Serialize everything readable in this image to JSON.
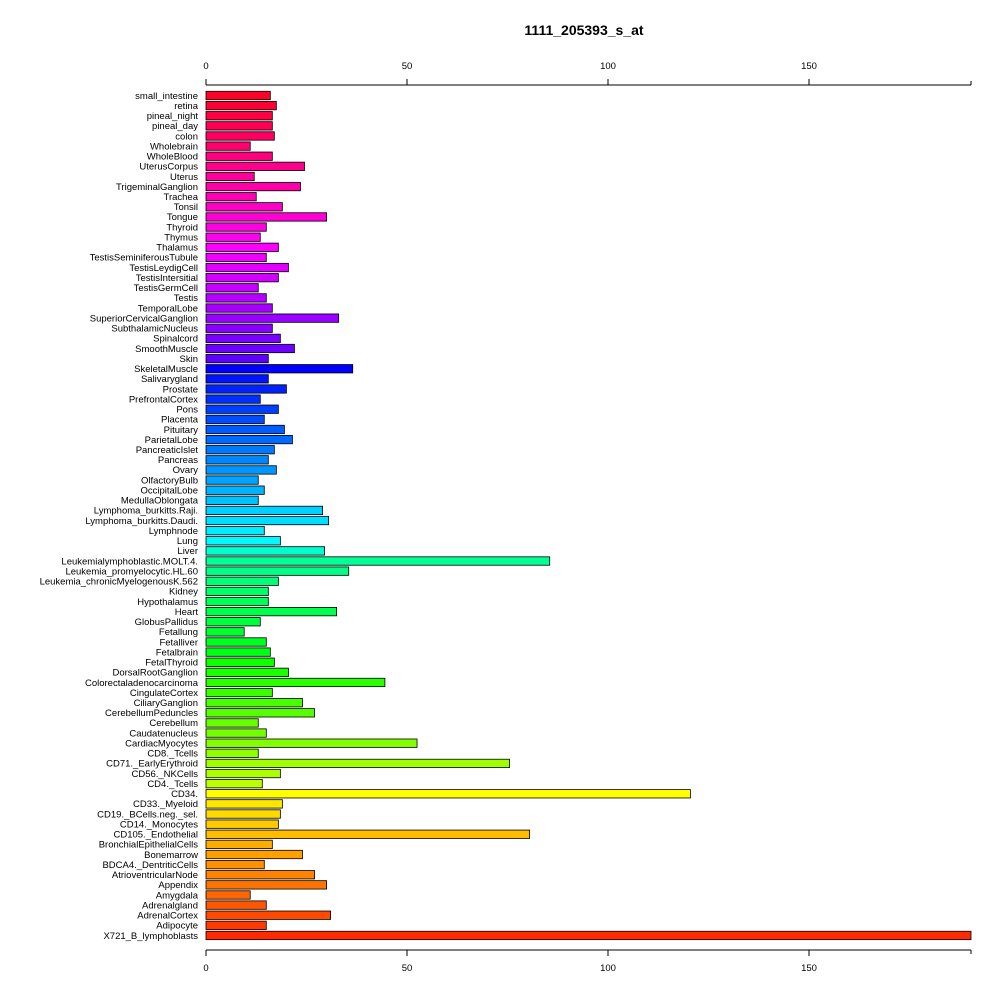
{
  "chart_data": {
    "type": "bar",
    "orientation": "horizontal",
    "title": "1111_205393_s_at",
    "xlabel": "",
    "ylabel": "",
    "xlim": [
      0,
      190
    ],
    "xticks": [
      0,
      50,
      100,
      150
    ],
    "axis_positions": [
      "top",
      "bottom"
    ],
    "grid": false,
    "legend": "none",
    "categories": [
      "small_intestine",
      "retina",
      "pineal_night",
      "pineal_day",
      "colon",
      "Wholebrain",
      "WholeBlood",
      "UterusCorpus",
      "Uterus",
      "TrigeminalGanglion",
      "Trachea",
      "Tonsil",
      "Tongue",
      "Thyroid",
      "Thymus",
      "Thalamus",
      "TestisSeminiferousTubule",
      "TestisLeydigCell",
      "TestisIntersitial",
      "TestisGermCell",
      "Testis",
      "TemporalLobe",
      "SuperiorCervicalGanglion",
      "SubthalamicNucleus",
      "Spinalcord",
      "SmoothMuscle",
      "Skin",
      "SkeletalMuscle",
      "Salivarygland",
      "Prostate",
      "PrefrontalCortex",
      "Pons",
      "Placenta",
      "Pituitary",
      "ParietalLobe",
      "PancreaticIslet",
      "Pancreas",
      "Ovary",
      "OlfactoryBulb",
      "OccipitalLobe",
      "MedullaOblongata",
      "Lymphoma_burkitts.Raji.",
      "Lymphoma_burkitts.Daudi.",
      "Lymphnode",
      "Lung",
      "Liver",
      "Leukemialymphoblastic.MOLT.4.",
      "Leukemia_promyelocytic.HL.60",
      "Leukemia_chronicMyelogenousK.562",
      "Kidney",
      "Hypothalamus",
      "Heart",
      "GlobusPallidus",
      "Fetallung",
      "Fetalliver",
      "Fetalbrain",
      "FetalThyroid",
      "DorsalRootGanglion",
      "Colorectaladenocarcinoma",
      "CingulateCortex",
      "CiliaryGanglion",
      "CerebellumPeduncles",
      "Cerebellum",
      "Caudatenucleus",
      "CardiacMyocytes",
      "CD8._Tcells",
      "CD71._EarlyErythroid",
      "CD56._NKCells",
      "CD4._Tcells",
      "CD34.",
      "CD33._Myeloid",
      "CD19._BCells.neg._sel.",
      "CD14._Monocytes",
      "CD105._Endothelial",
      "BronchialEpithelialCells",
      "Bonemarrow",
      "BDCA4._DentriticCells",
      "AtrioventricularNode",
      "Appendix",
      "Amygdala",
      "Adrenalgland",
      "AdrenalCortex",
      "Adipocyte",
      "X721_B_lymphoblasts"
    ],
    "values": [
      16,
      17.5,
      16.5,
      16.5,
      17,
      11,
      16.5,
      24.5,
      12,
      23.5,
      12.5,
      19,
      30,
      15,
      13.5,
      18,
      15,
      20.5,
      18,
      13,
      15,
      16.5,
      33,
      16.5,
      18.5,
      22,
      15.5,
      36.5,
      15.5,
      20,
      13.5,
      18,
      14.5,
      19.5,
      21.5,
      17,
      15.5,
      17.5,
      13,
      14.5,
      13,
      29,
      30.5,
      14.5,
      18.5,
      29.5,
      85.5,
      35.5,
      18,
      15.5,
      15.5,
      32.5,
      13.5,
      9.5,
      15,
      16,
      17,
      20.5,
      44.5,
      16.5,
      24,
      27,
      13,
      15,
      52.5,
      13,
      75.5,
      18.5,
      14,
      120.5,
      19,
      18.5,
      18,
      80.5,
      16.5,
      24,
      14.5,
      27,
      30,
      11,
      15,
      31,
      15,
      191
    ],
    "colors": [
      "#ff0026",
      "#ff0035",
      "#ff0043",
      "#ff0052",
      "#ff0060",
      "#ff006f",
      "#ff007d",
      "#ff008c",
      "#ff009a",
      "#ff00a9",
      "#ff00b7",
      "#ff00c6",
      "#ff00d4",
      "#ff00e3",
      "#ff00f1",
      "#fe00ff",
      "#ef00ff",
      "#e100ff",
      "#d200ff",
      "#c400ff",
      "#b500ff",
      "#a700ff",
      "#9800ff",
      "#8a00ff",
      "#7b00ff",
      "#6d00ff",
      "#5e00ff",
      "#0000ff",
      "#0013ff",
      "#0022ff",
      "#0030ff",
      "#003fff",
      "#004dff",
      "#005cff",
      "#006aff",
      "#0079ff",
      "#0087ff",
      "#0096ff",
      "#00a4ff",
      "#00b3ff",
      "#00c1ff",
      "#00d0ff",
      "#00deff",
      "#00edff",
      "#00fbff",
      "#00ffcc",
      "#00ff94",
      "#00ff86",
      "#00ff77",
      "#00ff69",
      "#00ff5a",
      "#00ff4c",
      "#00ff3d",
      "#00ff2f",
      "#00ff20",
      "#00ff12",
      "#0eff00",
      "#1cff00",
      "#2bff00",
      "#39ff00",
      "#48ff00",
      "#56ff00",
      "#65ff00",
      "#73ff00",
      "#82ff00",
      "#90ff00",
      "#9fff00",
      "#adff00",
      "#bcff00",
      "#ffff00",
      "#ffe700",
      "#ffd900",
      "#ffca00",
      "#ffbc00",
      "#ffad00",
      "#ff9f00",
      "#ff9000",
      "#ff8200",
      "#ff7300",
      "#ff6500",
      "#ff5600",
      "#ff4800",
      "#ff3900",
      "#ff2b00"
    ]
  }
}
